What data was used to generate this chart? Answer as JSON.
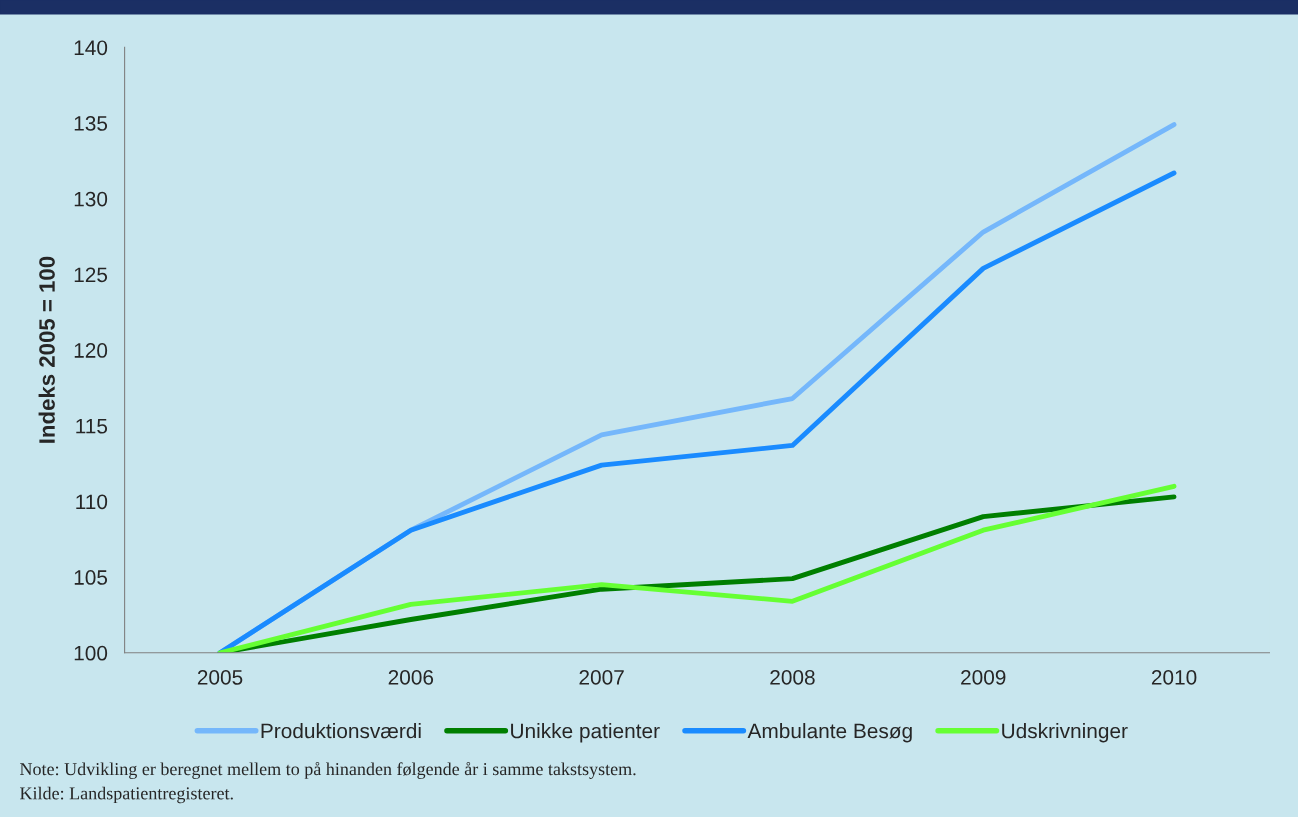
{
  "chart_data": {
    "type": "line",
    "ylabel": "Indeks 2005 = 100",
    "categories": [
      "2005",
      "2006",
      "2007",
      "2008",
      "2009",
      "2010"
    ],
    "series": [
      {
        "name": "Produktionsværdi",
        "color": "#75b7fb",
        "values": [
          100,
          108.1,
          114.4,
          116.8,
          127.8,
          134.9
        ]
      },
      {
        "name": "Unikke patienter",
        "color": "#007f00",
        "values": [
          100,
          102.2,
          104.2,
          104.9,
          109.0,
          110.3
        ]
      },
      {
        "name": "Ambulante Besøg",
        "color": "#1a8bff",
        "values": [
          100,
          108.1,
          112.4,
          113.7,
          125.4,
          131.7
        ]
      },
      {
        "name": "Udskrivninger",
        "color": "#66ff33",
        "values": [
          100,
          103.2,
          104.5,
          103.4,
          108.1,
          111.0
        ]
      }
    ],
    "ylim": [
      100,
      140
    ],
    "yticks": [
      100,
      105,
      110,
      115,
      120,
      125,
      130,
      135,
      140
    ],
    "grid": false,
    "legend": "bottom",
    "marker": "none",
    "line_style": "solid",
    "annotations": [
      "Note: Udvikling er beregnet mellem to på hinanden følgende år i samme takstsystem.",
      "Kilde: Landspatientregisteret."
    ]
  }
}
